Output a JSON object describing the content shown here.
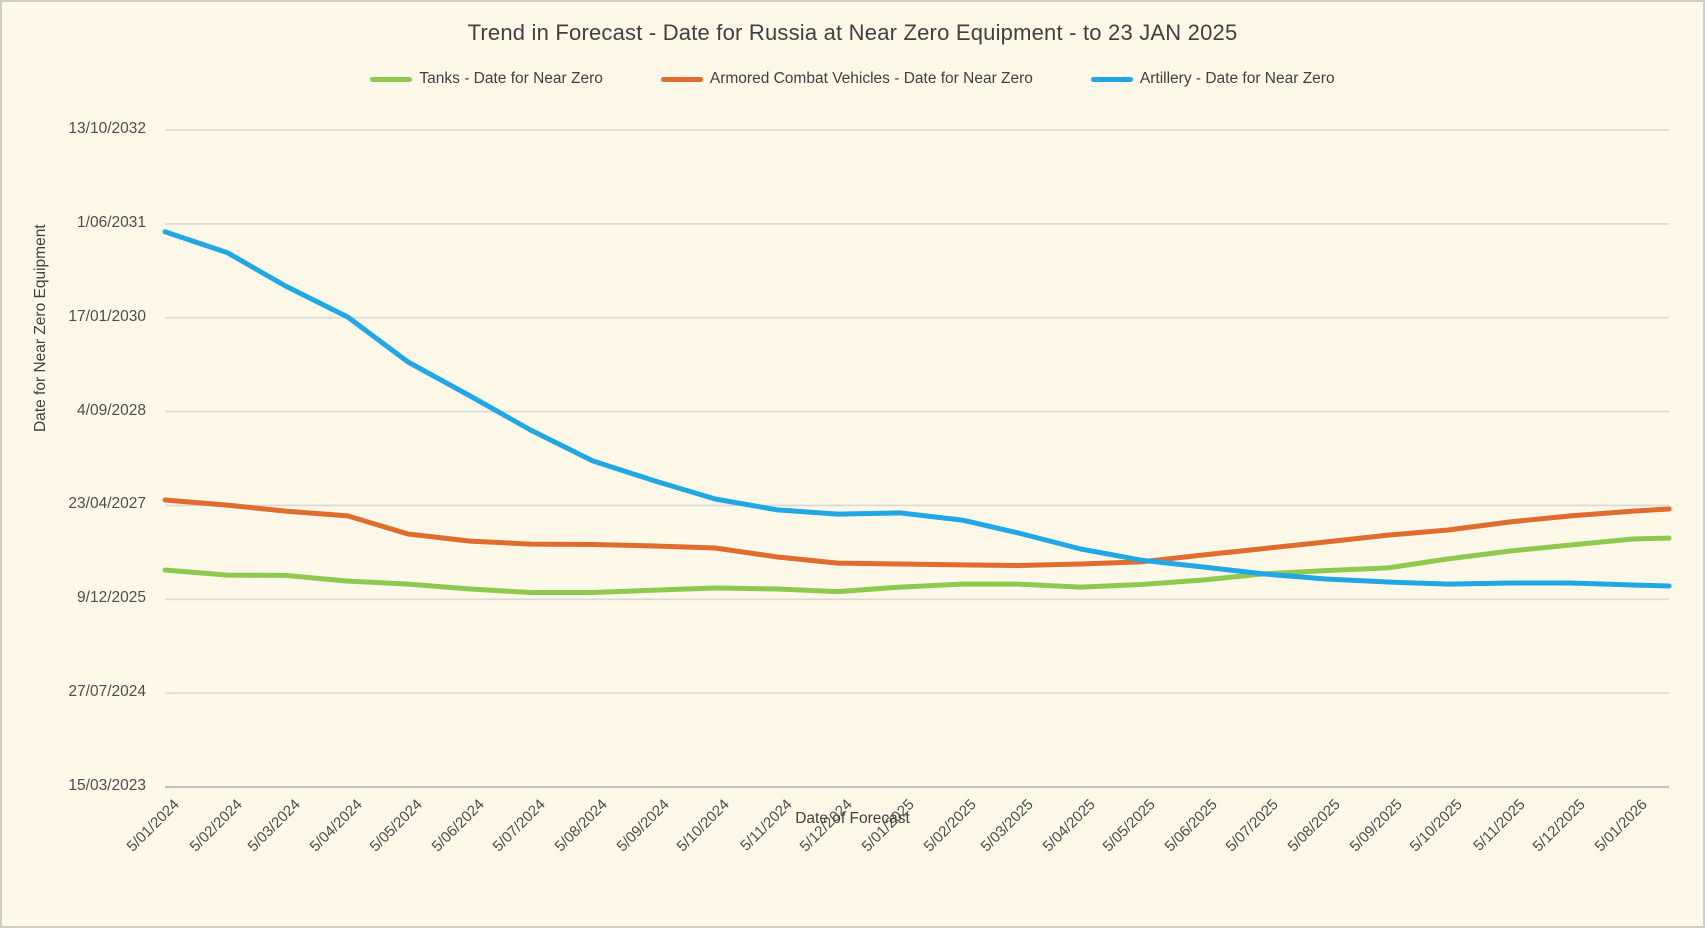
{
  "title": "Trend in Forecast - Date for Russia at Near Zero Equipment - to 23 JAN 2025",
  "colors": {
    "background": "#FDF8E7",
    "gridline": "#D9D9D9",
    "axis_line": "#C2C2C2",
    "text": "#404040",
    "tick_text": "#4d4d4d",
    "tanks_green": "#90C94F",
    "acv_orange": "#E06C2E",
    "artillery_blue": "#22A7E5"
  },
  "legend": [
    {
      "label": "Tanks - Date for Near Zero",
      "color": "#90C94F"
    },
    {
      "label": "Armored Combat Vehicles - Date for Near Zero",
      "color": "#E06C2E"
    },
    {
      "label": "Artillery - Date for Near Zero",
      "color": "#22A7E5"
    }
  ],
  "chart_data": {
    "type": "line",
    "title": "Trend in Forecast - Date for Russia at Near Zero Equipment - to 23 JAN 2025",
    "xlabel": "Date of Forecast",
    "ylabel": "Date for Near Zero Equipment",
    "grid": "horizontal",
    "legend_position": "top",
    "x_axis": {
      "start": "2024-01-05",
      "end": "2026-01-23",
      "tick_dates": [
        "2024-01-05",
        "2024-02-05",
        "2024-03-05",
        "2024-04-05",
        "2024-05-05",
        "2024-06-05",
        "2024-07-05",
        "2024-08-05",
        "2024-09-05",
        "2024-10-05",
        "2024-11-05",
        "2024-12-05",
        "2025-01-05",
        "2025-02-05",
        "2025-03-05",
        "2025-04-05",
        "2025-05-05",
        "2025-06-05",
        "2025-07-05",
        "2025-08-05",
        "2025-09-05",
        "2025-10-05",
        "2025-11-05",
        "2025-12-05",
        "2026-01-05"
      ],
      "tick_labels": [
        "5/01/2024",
        "5/02/2024",
        "5/03/2024",
        "5/04/2024",
        "5/05/2024",
        "5/06/2024",
        "5/07/2024",
        "5/08/2024",
        "5/09/2024",
        "5/10/2024",
        "5/11/2024",
        "5/12/2024",
        "5/01/2025",
        "5/02/2025",
        "5/03/2025",
        "5/04/2025",
        "5/05/2025",
        "5/06/2025",
        "5/07/2025",
        "5/08/2025",
        "5/09/2025",
        "5/10/2025",
        "5/11/2025",
        "5/12/2025",
        "5/01/2026"
      ]
    },
    "y_axis": {
      "bottom": "2023-03-15",
      "top": "2032-10-13",
      "tick_dates": [
        "2032-10-13",
        "2031-06-01",
        "2030-01-17",
        "2028-09-04",
        "2027-04-23",
        "2025-12-09",
        "2024-07-27",
        "2023-03-15"
      ],
      "tick_labels": [
        "13/10/2032",
        "1/06/2031",
        "17/01/2030",
        "4/09/2028",
        "23/04/2027",
        "9/12/2025",
        "27/07/2024",
        "15/03/2023"
      ]
    },
    "x_dates": [
      "2024-01-05",
      "2024-02-05",
      "2024-03-05",
      "2024-04-05",
      "2024-05-05",
      "2024-06-05",
      "2024-07-05",
      "2024-08-05",
      "2024-09-05",
      "2024-10-05",
      "2024-11-05",
      "2024-12-05",
      "2025-01-05",
      "2025-02-05",
      "2025-03-05",
      "2025-04-05",
      "2025-05-05",
      "2025-06-05",
      "2025-07-05",
      "2025-08-05",
      "2025-09-05",
      "2025-10-05",
      "2025-11-05",
      "2025-12-05",
      "2026-01-05",
      "2026-01-23"
    ],
    "series": [
      {
        "name": "Tanks - Date for Near Zero",
        "color": "#90C94F",
        "values": [
          "2026-05-14",
          "2026-04-17",
          "2026-04-15",
          "2026-03-16",
          "2026-02-28",
          "2026-02-02",
          "2026-01-14",
          "2026-01-14",
          "2026-01-27",
          "2026-02-07",
          "2026-02-02",
          "2026-01-19",
          "2026-02-12",
          "2026-02-28",
          "2026-02-28",
          "2026-02-12",
          "2026-02-26",
          "2026-03-22",
          "2026-04-23",
          "2026-05-11",
          "2026-05-25",
          "2026-07-12",
          "2026-08-23",
          "2026-09-24",
          "2026-10-26",
          "2026-10-31"
        ]
      },
      {
        "name": "Armored Combat Vehicles - Date for Near Zero",
        "color": "#E06C2E",
        "values": [
          "2027-05-22",
          "2027-04-25",
          "2027-03-24",
          "2027-02-26",
          "2026-11-22",
          "2026-10-15",
          "2026-09-29",
          "2026-09-27",
          "2026-09-19",
          "2026-09-08",
          "2026-07-22",
          "2026-06-20",
          "2026-06-15",
          "2026-06-10",
          "2026-06-07",
          "2026-06-15",
          "2026-06-26",
          "2026-08-02",
          "2026-09-05",
          "2026-10-10",
          "2026-11-16",
          "2026-12-13",
          "2027-01-25",
          "2027-02-26",
          "2027-03-24",
          "2027-04-04"
        ]
      },
      {
        "name": "Artillery - Date for Near Zero",
        "color": "#22A7E5",
        "values": [
          "2031-04-20",
          "2030-12-30",
          "2030-07-05",
          "2030-01-21",
          "2029-05-26",
          "2028-11-26",
          "2028-05-29",
          "2027-12-16",
          "2027-08-31",
          "2027-05-27",
          "2027-03-30",
          "2027-03-08",
          "2027-03-14",
          "2027-02-04",
          "2026-11-27",
          "2026-09-03",
          "2026-07-06",
          "2026-05-30",
          "2026-04-23",
          "2026-03-27",
          "2026-03-11",
          "2026-02-28",
          "2026-03-06",
          "2026-03-06",
          "2026-02-23",
          "2026-02-18"
        ]
      }
    ]
  }
}
